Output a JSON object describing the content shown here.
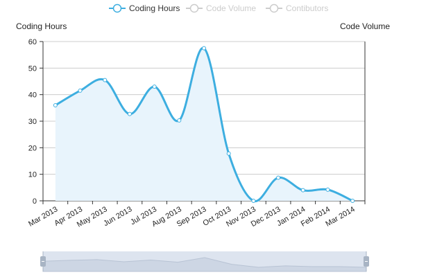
{
  "chart_data": {
    "type": "line",
    "legend": {
      "placement": "top-center",
      "items": [
        {
          "name": "Coding Hours",
          "active": true,
          "color": "#3daee0"
        },
        {
          "name": "Code Volume",
          "active": false,
          "color": "#cccccc"
        },
        {
          "name": "Contibutors",
          "active": false,
          "color": "#cccccc"
        }
      ]
    },
    "ylabel_left": "Coding Hours",
    "ylabel_right": "Code Volume",
    "ylim": [
      0,
      60
    ],
    "yticks": [
      "0",
      "10",
      "20",
      "30",
      "40",
      "50",
      "60"
    ],
    "categories": [
      "Mar 2013",
      "Apr 2013",
      "May 2013",
      "Jun 2013",
      "Jul 2013",
      "Aug 2013",
      "Sep 2013",
      "Oct 2013",
      "Nov 2013",
      "Dec 2013",
      "Jan 2014",
      "Feb 2014",
      "Mar 2014"
    ],
    "series": [
      {
        "name": "Coding Hours",
        "values": [
          36,
          41.5,
          45.5,
          32.7,
          43,
          30.3,
          57.5,
          17.8,
          0,
          8.7,
          4,
          4.2,
          0
        ],
        "smooth": true,
        "area_fill": true
      }
    ],
    "grid": {
      "horizontal": true,
      "vertical": false
    },
    "data_zoom": {
      "visible": true,
      "range": [
        0,
        100
      ]
    },
    "colors": {
      "line": "#3daee0",
      "area": "#e8f4fc",
      "grid": "#cccccc",
      "axis": "#333333",
      "zoom_bg": "#dde4ef",
      "zoom_handle": "#a8b4c4",
      "legend_inactive": "#cccccc"
    }
  }
}
